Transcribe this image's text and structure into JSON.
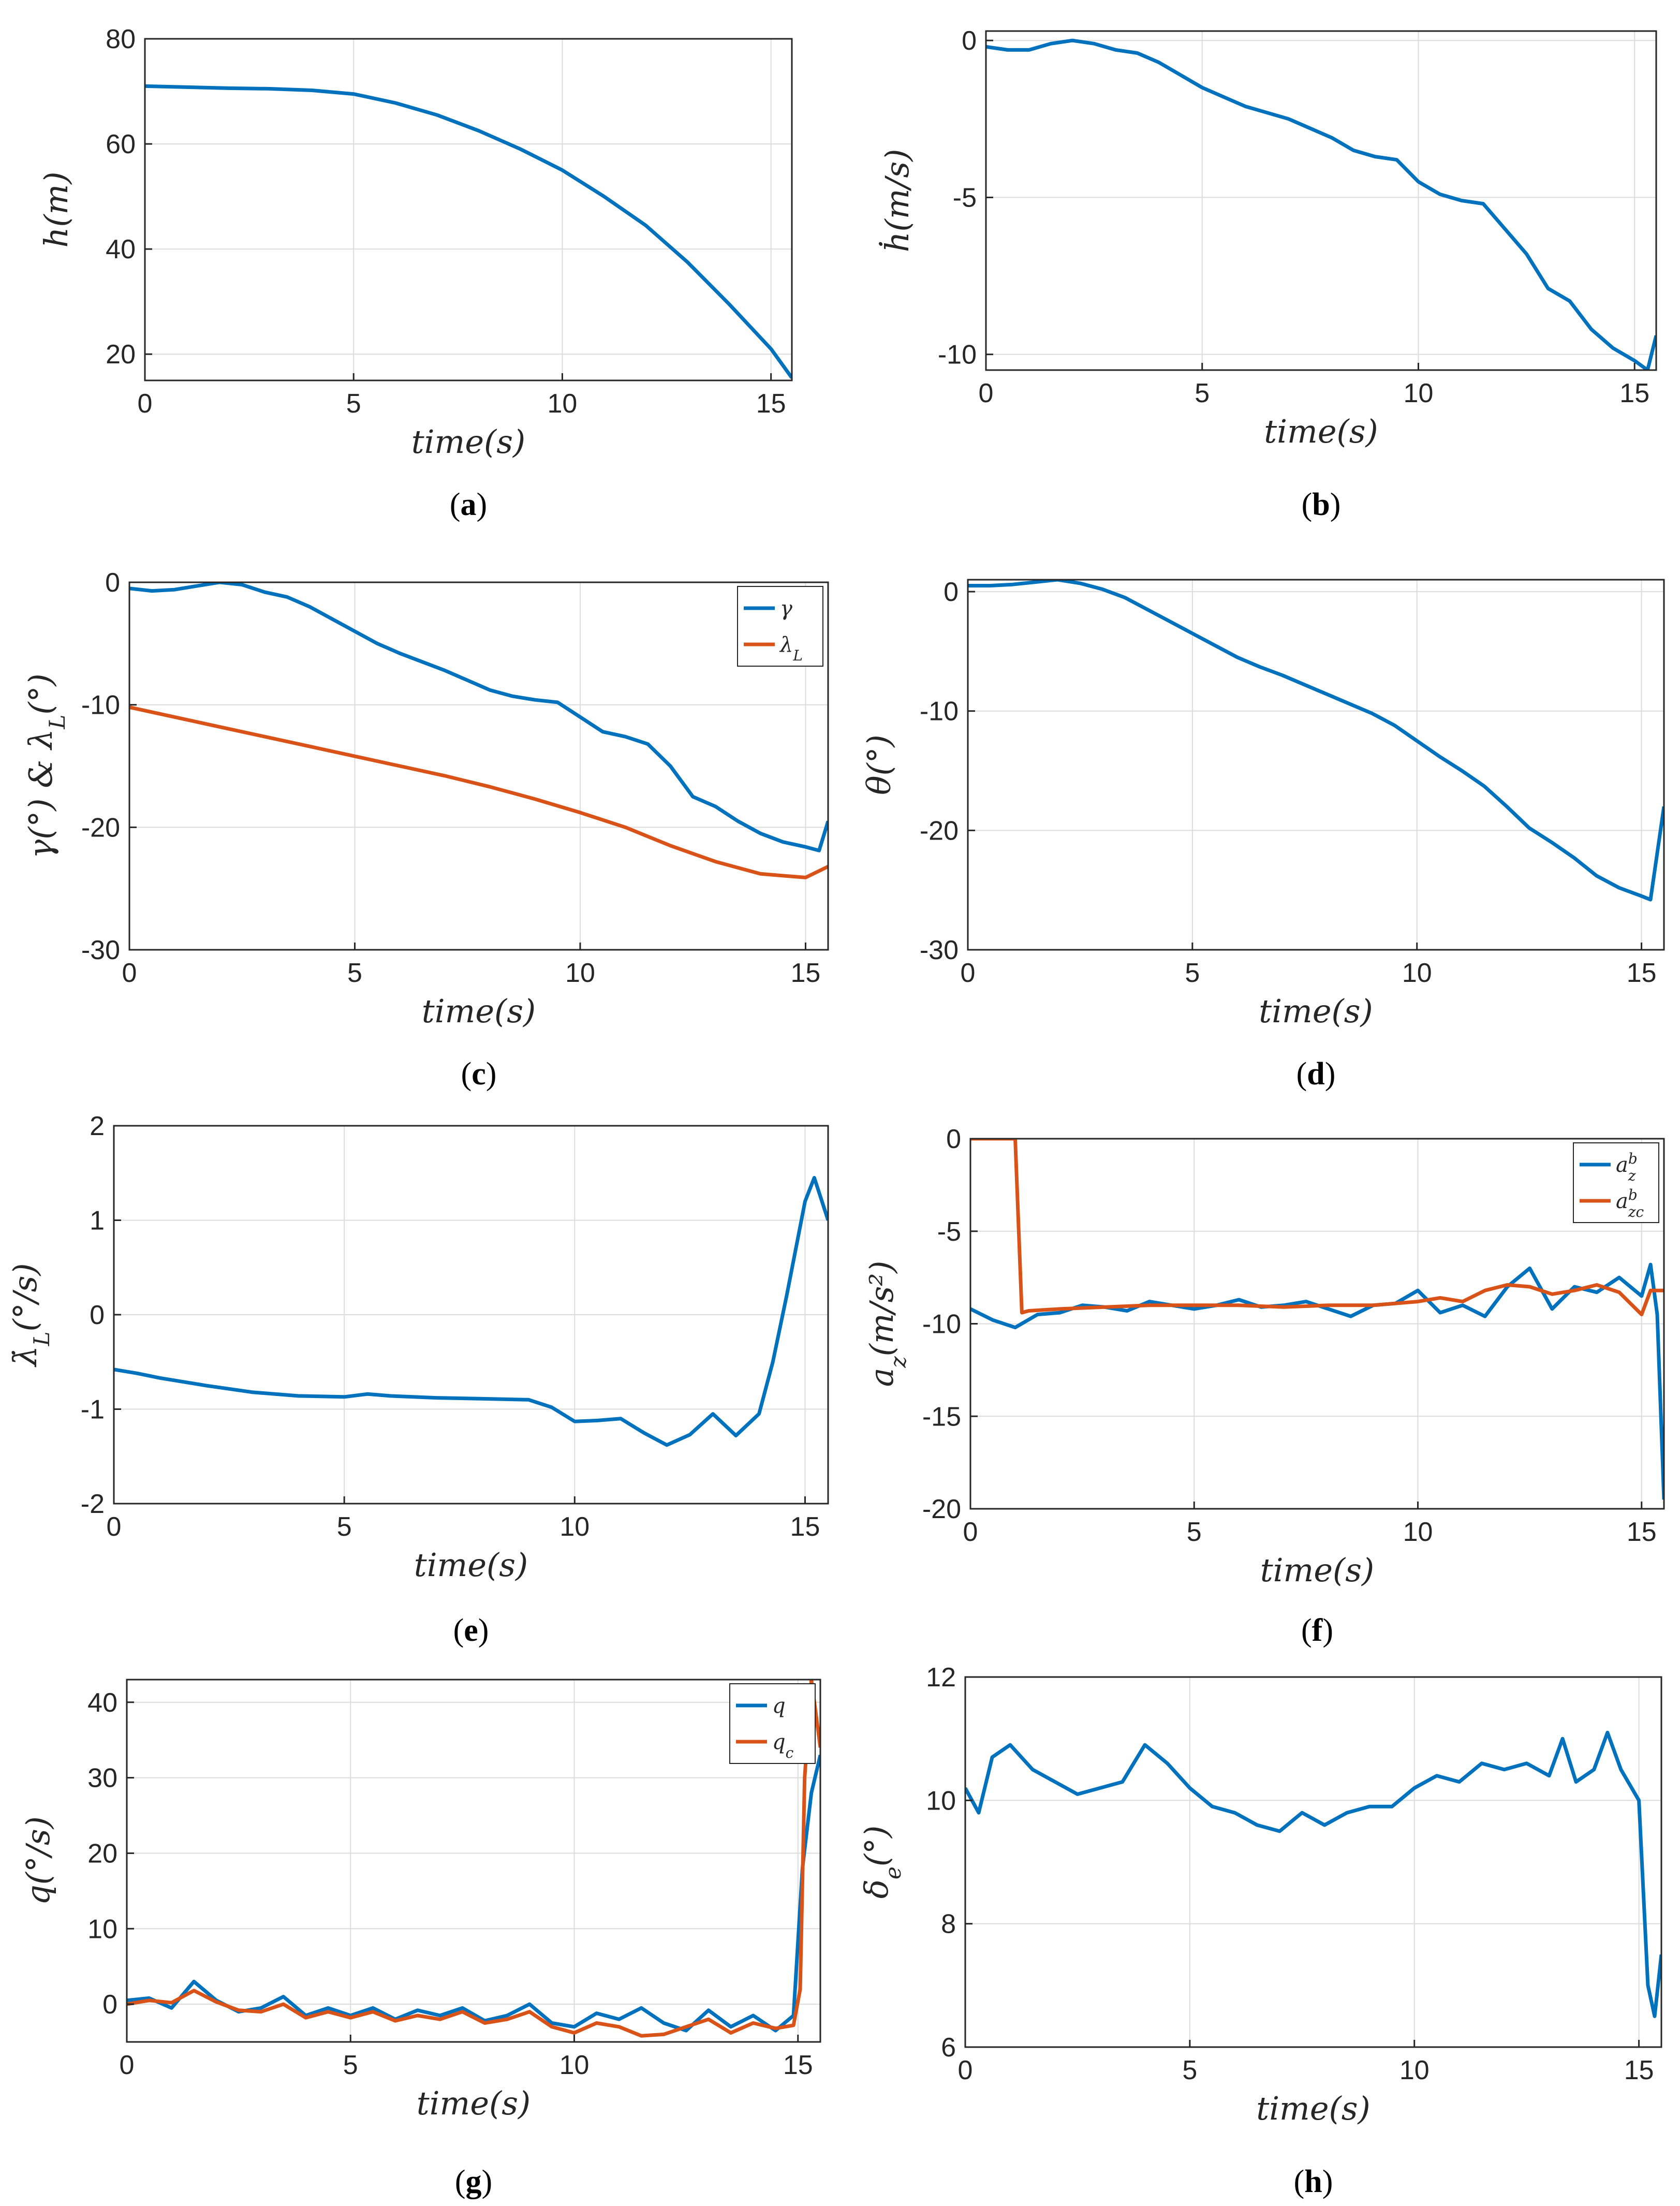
{
  "colors": {
    "series1": "#0072BD",
    "series2": "#D95319",
    "grid": "#dcdcdc",
    "axis": "#262626"
  },
  "chart_data": [
    {
      "id": "a",
      "type": "line",
      "caption_letter": "a",
      "xlabel": "time(s)",
      "ylabel": "h(m)",
      "xlim": [
        0,
        15.5
      ],
      "ylim": [
        15,
        80
      ],
      "xticks": [
        0,
        5,
        10,
        15
      ],
      "yticks": [
        20,
        40,
        60,
        80
      ],
      "grid": true,
      "legend": null,
      "series": [
        {
          "name": "h",
          "color": "#0072BD",
          "x": [
            0,
            1,
            2,
            3,
            4,
            5,
            6,
            7,
            8,
            9,
            10,
            11,
            12,
            13,
            14,
            15,
            15.5
          ],
          "y": [
            71,
            70.8,
            70.6,
            70.5,
            70.2,
            69.5,
            67.8,
            65.5,
            62.5,
            59,
            55,
            50,
            44.5,
            37.5,
            29.5,
            21,
            15.5
          ]
        }
      ]
    },
    {
      "id": "b",
      "type": "line",
      "caption_letter": "b",
      "xlabel": "time(s)",
      "ylabel": "ḣ(m/s)",
      "xlim": [
        0,
        15.5
      ],
      "ylim": [
        -10.5,
        0.3
      ],
      "xticks": [
        0,
        5,
        10,
        15
      ],
      "yticks": [
        -10,
        -5,
        0
      ],
      "grid": true,
      "legend": null,
      "series": [
        {
          "name": "hdot",
          "color": "#0072BD",
          "x": [
            0,
            0.5,
            1,
            1.5,
            2,
            2.5,
            3,
            3.5,
            4,
            4.5,
            5,
            5.5,
            6,
            6.5,
            7,
            7.5,
            8,
            8.5,
            9,
            9.5,
            10,
            10.5,
            11,
            11.5,
            12,
            12.5,
            13,
            13.5,
            14,
            14.5,
            15,
            15.3,
            15.5
          ],
          "y": [
            -0.2,
            -0.3,
            -0.3,
            -0.1,
            0,
            -0.1,
            -0.3,
            -0.4,
            -0.7,
            -1.1,
            -1.5,
            -1.8,
            -2.1,
            -2.3,
            -2.5,
            -2.8,
            -3.1,
            -3.5,
            -3.7,
            -3.8,
            -4.5,
            -4.9,
            -5.1,
            -5.2,
            -6.0,
            -6.8,
            -7.9,
            -8.3,
            -9.2,
            -9.8,
            -10.2,
            -10.5,
            -9.4
          ]
        }
      ]
    },
    {
      "id": "c",
      "type": "line",
      "caption_letter": "c",
      "xlabel": "time(s)",
      "ylabel": "γ(°)  &  λ_L(°)",
      "xlim": [
        0,
        15.5
      ],
      "ylim": [
        -30,
        0
      ],
      "xticks": [
        0,
        5,
        10,
        15
      ],
      "yticks": [
        -30,
        -20,
        -10,
        0
      ],
      "grid": true,
      "legend": "top-right",
      "series": [
        {
          "name": "γ",
          "sub": "",
          "color": "#0072BD",
          "x": [
            0,
            0.5,
            1,
            1.5,
            2,
            2.5,
            3,
            3.5,
            4,
            4.5,
            5,
            5.5,
            6,
            6.5,
            7,
            7.5,
            8,
            8.5,
            9,
            9.5,
            10,
            10.5,
            11,
            11.5,
            12,
            12.5,
            13,
            13.5,
            14,
            14.5,
            15,
            15.3,
            15.5
          ],
          "y": [
            -0.5,
            -0.7,
            -0.6,
            -0.3,
            0,
            -0.2,
            -0.8,
            -1.2,
            -2,
            -3,
            -4,
            -5,
            -5.8,
            -6.5,
            -7.2,
            -8,
            -8.8,
            -9.3,
            -9.6,
            -9.8,
            -11,
            -12.2,
            -12.6,
            -13.2,
            -15,
            -17.5,
            -18.3,
            -19.5,
            -20.5,
            -21.2,
            -21.6,
            -21.9,
            -19.5
          ]
        },
        {
          "name": "λ",
          "sub": "L",
          "color": "#D95319",
          "x": [
            0,
            1,
            2,
            3,
            4,
            5,
            6,
            7,
            8,
            9,
            10,
            11,
            12,
            13,
            14,
            15,
            15.5
          ],
          "y": [
            -10.2,
            -11,
            -11.8,
            -12.6,
            -13.4,
            -14.2,
            -15,
            -15.8,
            -16.7,
            -17.7,
            -18.8,
            -20,
            -21.5,
            -22.8,
            -23.8,
            -24.1,
            -23.2
          ]
        }
      ]
    },
    {
      "id": "d",
      "type": "line",
      "caption_letter": "d",
      "xlabel": "time(s)",
      "ylabel": "θ(°)",
      "xlim": [
        0,
        15.5
      ],
      "ylim": [
        -30,
        1
      ],
      "xticks": [
        0,
        5,
        10,
        15
      ],
      "yticks": [
        -30,
        -20,
        -10,
        0
      ],
      "grid": true,
      "legend": null,
      "series": [
        {
          "name": "θ",
          "color": "#0072BD",
          "x": [
            0,
            0.5,
            1,
            1.5,
            2,
            2.5,
            3,
            3.5,
            4,
            4.5,
            5,
            5.5,
            6,
            6.5,
            7,
            7.5,
            8,
            8.5,
            9,
            9.5,
            10,
            10.5,
            11,
            11.5,
            12,
            12.5,
            13,
            13.5,
            14,
            14.5,
            15,
            15.2,
            15.5
          ],
          "y": [
            0.5,
            0.5,
            0.6,
            0.8,
            1,
            0.7,
            0.2,
            -0.5,
            -1.5,
            -2.5,
            -3.5,
            -4.5,
            -5.5,
            -6.3,
            -7,
            -7.8,
            -8.6,
            -9.4,
            -10.2,
            -11.2,
            -12.5,
            -13.8,
            -15,
            -16.3,
            -18,
            -19.8,
            -21,
            -22.3,
            -23.8,
            -24.8,
            -25.5,
            -25.8,
            -18
          ]
        }
      ]
    },
    {
      "id": "e",
      "type": "line",
      "caption_letter": "e",
      "xlabel": "time(s)",
      "ylabel": "λ̇_L(°/s)",
      "xlim": [
        0,
        15.5
      ],
      "ylim": [
        -2,
        2
      ],
      "xticks": [
        0,
        5,
        10,
        15
      ],
      "yticks": [
        -2,
        -1,
        0,
        1,
        2
      ],
      "grid": true,
      "legend": null,
      "series": [
        {
          "name": "lambda_dot",
          "color": "#0072BD",
          "x": [
            0,
            0.5,
            1,
            2,
            3,
            4,
            5,
            5.5,
            6,
            7,
            8,
            9,
            9.5,
            10,
            10.5,
            11,
            11.5,
            12,
            12.5,
            13,
            13.5,
            14,
            14.3,
            14.6,
            15,
            15.2,
            15.5
          ],
          "y": [
            -0.58,
            -0.62,
            -0.67,
            -0.75,
            -0.82,
            -0.86,
            -0.87,
            -0.84,
            -0.86,
            -0.88,
            -0.89,
            -0.9,
            -0.98,
            -1.13,
            -1.12,
            -1.1,
            -1.25,
            -1.38,
            -1.27,
            -1.05,
            -1.28,
            -1.05,
            -0.5,
            0.2,
            1.2,
            1.45,
            1.0
          ]
        }
      ]
    },
    {
      "id": "f",
      "type": "line",
      "caption_letter": "f",
      "xlabel": "time(s)",
      "ylabel": "a_z(m/s²)",
      "xlim": [
        0,
        15.5
      ],
      "ylim": [
        -20,
        0
      ],
      "xticks": [
        0,
        5,
        10,
        15
      ],
      "yticks": [
        -20,
        -15,
        -10,
        -5,
        0
      ],
      "grid": true,
      "legend": "top-right",
      "series": [
        {
          "name": "a",
          "sub": "z",
          "sup": "b",
          "color": "#0072BD",
          "x": [
            0,
            0.5,
            1,
            1.5,
            2,
            2.5,
            3,
            3.5,
            4,
            4.5,
            5,
            5.5,
            6,
            6.5,
            7,
            7.5,
            8,
            8.5,
            9,
            9.5,
            10,
            10.5,
            11,
            11.5,
            12,
            12.5,
            13,
            13.5,
            14,
            14.5,
            15,
            15.2,
            15.35,
            15.5
          ],
          "y": [
            -9.2,
            -9.8,
            -10.2,
            -9.5,
            -9.4,
            -9.0,
            -9.1,
            -9.3,
            -8.8,
            -9.0,
            -9.2,
            -9.0,
            -8.7,
            -9.1,
            -9.0,
            -8.8,
            -9.2,
            -9.6,
            -9.0,
            -8.9,
            -8.2,
            -9.4,
            -9.0,
            -9.6,
            -8.0,
            -7.0,
            -9.2,
            -8.0,
            -8.3,
            -7.5,
            -8.5,
            -6.8,
            -9.5,
            -19.5
          ]
        },
        {
          "name": "a",
          "sub": "zc",
          "sup": "b",
          "color": "#D95319",
          "x": [
            0,
            1.0,
            1.15,
            1.3,
            2,
            3,
            4,
            5,
            6,
            7,
            8,
            9,
            10,
            10.5,
            11,
            11.5,
            12,
            12.5,
            13,
            13.5,
            14,
            14.5,
            15,
            15.2,
            15.5
          ],
          "y": [
            0,
            0,
            -9.4,
            -9.3,
            -9.2,
            -9.1,
            -9.0,
            -9.0,
            -9.0,
            -9.1,
            -9.0,
            -9.0,
            -8.8,
            -8.6,
            -8.8,
            -8.2,
            -7.9,
            -8.0,
            -8.4,
            -8.2,
            -7.9,
            -8.3,
            -9.5,
            -8.2,
            -8.2
          ]
        }
      ]
    },
    {
      "id": "g",
      "type": "line",
      "caption_letter": "g",
      "xlabel": "time(s)",
      "ylabel": "q(°/s)",
      "xlim": [
        0,
        15.5
      ],
      "ylim": [
        -5,
        43
      ],
      "xticks": [
        0,
        5,
        10,
        15
      ],
      "yticks": [
        0,
        10,
        20,
        30,
        40
      ],
      "grid": true,
      "legend": "top-right",
      "series": [
        {
          "name": "q",
          "sub": "",
          "color": "#0072BD",
          "x": [
            0,
            0.5,
            1,
            1.5,
            2,
            2.5,
            3,
            3.5,
            4,
            4.5,
            5,
            5.5,
            6,
            6.5,
            7,
            7.5,
            8,
            8.5,
            9,
            9.5,
            10,
            10.5,
            11,
            11.5,
            12,
            12.5,
            13,
            13.5,
            14,
            14.5,
            14.9,
            15.1,
            15.3,
            15.5
          ],
          "y": [
            0.5,
            0.8,
            -0.5,
            3,
            0.5,
            -1,
            -0.5,
            1,
            -1.5,
            -0.5,
            -1.5,
            -0.5,
            -2,
            -0.8,
            -1.5,
            -0.5,
            -2.2,
            -1.5,
            0,
            -2.5,
            -3,
            -1.2,
            -2,
            -0.5,
            -2.5,
            -3.5,
            -0.8,
            -3,
            -1.5,
            -3.5,
            -1.5,
            18,
            28,
            33
          ]
        },
        {
          "name": "q",
          "sub": "c",
          "color": "#D95319",
          "x": [
            0,
            0.5,
            1,
            1.5,
            2,
            2.5,
            3,
            3.5,
            4,
            4.5,
            5,
            5.5,
            6,
            6.5,
            7,
            7.5,
            8,
            8.5,
            9,
            9.5,
            10,
            10.5,
            11,
            11.5,
            12,
            12.5,
            13,
            13.5,
            14,
            14.5,
            14.9,
            15.05,
            15.15,
            15.3,
            15.5
          ],
          "y": [
            0,
            0.5,
            0.2,
            1.8,
            0.3,
            -0.8,
            -1,
            0,
            -1.8,
            -1,
            -1.8,
            -1,
            -2.2,
            -1.5,
            -2,
            -1,
            -2.5,
            -2,
            -1,
            -3,
            -3.8,
            -2.5,
            -3,
            -4.2,
            -4,
            -3,
            -2,
            -3.8,
            -2.5,
            -3.2,
            -2.8,
            2,
            30,
            43,
            34
          ]
        }
      ]
    },
    {
      "id": "h",
      "type": "line",
      "caption_letter": "h",
      "xlabel": "time(s)",
      "ylabel": "δ_e(°)",
      "xlim": [
        0,
        15.5
      ],
      "ylim": [
        6,
        12
      ],
      "xticks": [
        0,
        5,
        10,
        15
      ],
      "yticks": [
        6,
        8,
        10,
        12
      ],
      "grid": true,
      "legend": null,
      "series": [
        {
          "name": "delta_e",
          "color": "#0072BD",
          "x": [
            0,
            0.3,
            0.6,
            1,
            1.5,
            2,
            2.5,
            3,
            3.5,
            4,
            4.5,
            5,
            5.5,
            6,
            6.5,
            7,
            7.5,
            8,
            8.5,
            9,
            9.5,
            10,
            10.5,
            11,
            11.5,
            12,
            12.5,
            13,
            13.3,
            13.6,
            14,
            14.3,
            14.6,
            15,
            15.2,
            15.35,
            15.5
          ],
          "y": [
            10.2,
            9.8,
            10.7,
            10.9,
            10.5,
            10.3,
            10.1,
            10.2,
            10.3,
            10.9,
            10.6,
            10.2,
            9.9,
            9.8,
            9.6,
            9.5,
            9.8,
            9.6,
            9.8,
            9.9,
            9.9,
            10.2,
            10.4,
            10.3,
            10.6,
            10.5,
            10.6,
            10.4,
            11.0,
            10.3,
            10.5,
            11.1,
            10.5,
            10.0,
            7.0,
            6.5,
            7.5
          ]
        }
      ]
    }
  ]
}
